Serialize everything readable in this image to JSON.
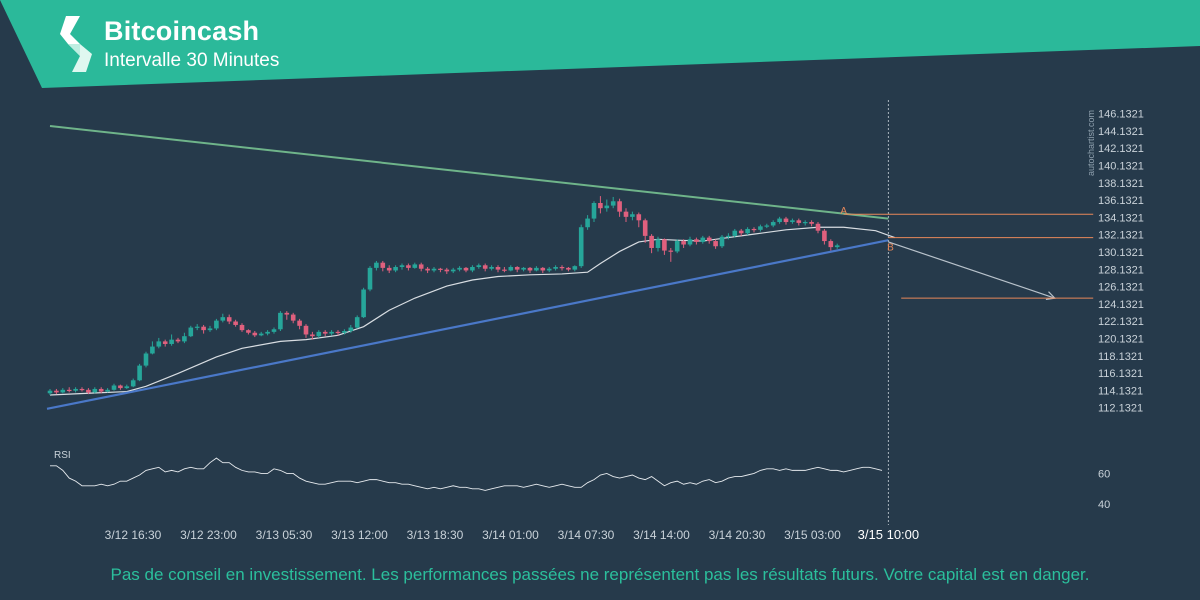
{
  "header": {
    "title": "Bitcoincash",
    "subtitle": "Intervalle 30 Minutes"
  },
  "watermark": "autochartist.com",
  "disclaimer": "Pas de conseil en investissement. Les performances passées ne représentent pas les résultats futurs. Votre capital est en danger.",
  "colors": {
    "brand": "#2bb99a",
    "background": "#263a4b",
    "bullish": "#26a69a",
    "bearish": "#e0607e",
    "resistance_line": "#6fb48a",
    "support_line": "#4a78c8",
    "ma_line": "#d8dde2",
    "forecast_line": "#b8c2cb",
    "level_line": "#e8885a"
  },
  "chart_data": {
    "type": "candlestick",
    "ylim": [
      110.1321,
      147.1321
    ],
    "y_ticks": [
      "146.1321",
      "144.1321",
      "142.1321",
      "140.1321",
      "138.1321",
      "136.1321",
      "134.1321",
      "132.1321",
      "130.1321",
      "128.1321",
      "126.1321",
      "124.1321",
      "122.1321",
      "120.1321",
      "118.1321",
      "116.1321",
      "114.1321",
      "112.1321"
    ],
    "x_ticks": [
      "3/12 16:30",
      "3/12 23:00",
      "3/13 05:30",
      "3/13 12:00",
      "3/13 18:30",
      "3/14 01:00",
      "3/14 07:30",
      "3/14 14:00",
      "3/14 20:30",
      "3/15 03:00",
      "3/15 10:00"
    ],
    "x_range_bars": [
      0,
      134
    ],
    "event_bar": 131,
    "candles": [
      [
        113.8,
        114.1,
        113.6,
        114.3
      ],
      [
        114.1,
        113.9,
        113.7,
        114.3
      ],
      [
        113.9,
        114.2,
        113.8,
        114.4
      ],
      [
        114.2,
        114.1,
        113.9,
        114.5
      ],
      [
        114.1,
        114.3,
        113.9,
        114.5
      ],
      [
        114.3,
        114.2,
        114.0,
        114.5
      ],
      [
        114.2,
        113.9,
        113.7,
        114.4
      ],
      [
        113.9,
        114.3,
        113.8,
        114.5
      ],
      [
        114.3,
        114.0,
        113.8,
        114.5
      ],
      [
        114.0,
        114.2,
        113.9,
        114.4
      ],
      [
        114.2,
        114.7,
        114.1,
        114.9
      ],
      [
        114.7,
        114.4,
        114.2,
        114.8
      ],
      [
        114.4,
        114.6,
        114.3,
        114.8
      ],
      [
        114.6,
        115.3,
        114.5,
        115.5
      ],
      [
        115.3,
        117.0,
        115.2,
        117.2
      ],
      [
        117.0,
        118.4,
        116.8,
        118.6
      ],
      [
        118.4,
        119.2,
        118.3,
        119.8
      ],
      [
        119.2,
        119.8,
        119.0,
        120.2
      ],
      [
        119.8,
        119.5,
        119.2,
        120.0
      ],
      [
        119.5,
        120.0,
        119.3,
        120.6
      ],
      [
        120.0,
        119.8,
        119.6,
        120.2
      ],
      [
        119.8,
        120.4,
        119.6,
        120.8
      ],
      [
        120.4,
        121.4,
        120.3,
        121.6
      ],
      [
        121.4,
        121.5,
        121.1,
        121.8
      ],
      [
        121.5,
        121.1,
        120.7,
        121.7
      ],
      [
        121.1,
        121.3,
        120.9,
        121.6
      ],
      [
        121.3,
        122.2,
        121.1,
        122.4
      ],
      [
        122.2,
        122.6,
        122.0,
        123.0
      ],
      [
        122.6,
        122.1,
        121.8,
        122.9
      ],
      [
        122.1,
        121.7,
        121.5,
        122.3
      ],
      [
        121.7,
        121.1,
        120.9,
        121.9
      ],
      [
        121.1,
        120.8,
        120.6,
        121.2
      ],
      [
        120.8,
        120.5,
        120.3,
        121.0
      ],
      [
        120.5,
        120.7,
        120.4,
        120.9
      ],
      [
        120.7,
        120.9,
        120.5,
        121.1
      ],
      [
        120.9,
        121.2,
        120.7,
        121.4
      ],
      [
        121.2,
        123.1,
        121.0,
        123.3
      ],
      [
        123.1,
        122.9,
        122.3,
        123.3
      ],
      [
        122.9,
        122.2,
        121.9,
        123.1
      ],
      [
        122.2,
        121.6,
        121.2,
        122.4
      ],
      [
        121.6,
        120.6,
        120.2,
        121.8
      ],
      [
        120.6,
        120.4,
        120.0,
        120.9
      ],
      [
        120.4,
        120.9,
        120.2,
        121.1
      ],
      [
        120.9,
        120.7,
        120.4,
        121.1
      ],
      [
        120.7,
        120.9,
        120.5,
        121.1
      ],
      [
        120.9,
        120.8,
        120.5,
        121.1
      ],
      [
        120.8,
        121.0,
        120.6,
        121.2
      ],
      [
        121.0,
        121.4,
        120.8,
        121.7
      ],
      [
        121.4,
        122.6,
        121.3,
        122.8
      ],
      [
        122.6,
        125.8,
        122.5,
        126.0
      ],
      [
        125.8,
        128.3,
        125.6,
        128.5
      ],
      [
        128.3,
        128.9,
        128.0,
        129.1
      ],
      [
        128.9,
        128.3,
        127.9,
        129.1
      ],
      [
        128.3,
        128.0,
        127.7,
        128.6
      ],
      [
        128.0,
        128.4,
        127.8,
        128.6
      ],
      [
        128.4,
        128.6,
        128.1,
        128.8
      ],
      [
        128.6,
        128.3,
        128.0,
        128.8
      ],
      [
        128.3,
        128.7,
        128.2,
        128.9
      ],
      [
        128.7,
        128.2,
        127.9,
        128.9
      ],
      [
        128.2,
        128.0,
        127.7,
        128.4
      ],
      [
        128.0,
        128.2,
        127.8,
        128.4
      ],
      [
        128.2,
        128.1,
        127.8,
        128.3
      ],
      [
        128.1,
        127.9,
        127.6,
        128.3
      ],
      [
        127.9,
        128.1,
        127.7,
        128.3
      ],
      [
        128.1,
        128.3,
        127.9,
        128.5
      ],
      [
        128.3,
        128.0,
        127.8,
        128.4
      ],
      [
        128.0,
        128.4,
        127.8,
        128.6
      ],
      [
        128.4,
        128.6,
        128.2,
        128.8
      ],
      [
        128.6,
        128.2,
        127.9,
        128.8
      ],
      [
        128.2,
        128.4,
        128.0,
        128.6
      ],
      [
        128.4,
        128.1,
        127.8,
        128.6
      ],
      [
        128.1,
        128.0,
        127.8,
        128.4
      ],
      [
        128.0,
        128.4,
        127.9,
        128.6
      ],
      [
        128.4,
        128.1,
        127.8,
        128.5
      ],
      [
        128.1,
        128.3,
        127.9,
        128.4
      ],
      [
        128.3,
        128.0,
        127.7,
        128.4
      ],
      [
        128.0,
        128.3,
        127.9,
        128.5
      ],
      [
        128.3,
        128.0,
        127.7,
        128.4
      ],
      [
        128.0,
        128.2,
        127.8,
        128.4
      ],
      [
        128.2,
        128.4,
        128.0,
        128.6
      ],
      [
        128.4,
        128.3,
        128.0,
        128.6
      ],
      [
        128.3,
        128.1,
        127.9,
        128.4
      ],
      [
        128.1,
        128.5,
        127.9,
        128.6
      ],
      [
        128.5,
        133.0,
        128.3,
        133.3
      ],
      [
        133.0,
        134.0,
        132.7,
        134.4
      ],
      [
        134.0,
        135.8,
        133.6,
        136.0
      ],
      [
        135.8,
        135.2,
        134.6,
        136.6
      ],
      [
        135.2,
        135.5,
        134.8,
        136.2
      ],
      [
        135.5,
        136.0,
        135.2,
        136.5
      ],
      [
        136.0,
        134.8,
        134.2,
        136.3
      ],
      [
        134.8,
        134.2,
        133.6,
        135.2
      ],
      [
        134.2,
        134.5,
        133.8,
        134.8
      ],
      [
        134.5,
        133.8,
        133.0,
        134.7
      ],
      [
        133.8,
        132.0,
        131.2,
        134.0
      ],
      [
        132.0,
        130.6,
        130.0,
        132.2
      ],
      [
        130.6,
        131.6,
        130.2,
        131.9
      ],
      [
        131.6,
        130.3,
        129.8,
        131.7
      ],
      [
        130.3,
        130.2,
        129.0,
        130.6
      ],
      [
        130.2,
        131.4,
        130.0,
        131.6
      ],
      [
        131.4,
        131.0,
        130.6,
        131.6
      ],
      [
        131.0,
        131.6,
        130.8,
        131.9
      ],
      [
        131.6,
        131.3,
        131.0,
        131.8
      ],
      [
        131.3,
        131.8,
        131.1,
        132.0
      ],
      [
        131.8,
        131.4,
        131.1,
        132.0
      ],
      [
        131.4,
        130.8,
        130.5,
        131.6
      ],
      [
        130.8,
        131.9,
        130.6,
        132.1
      ],
      [
        131.9,
        132.0,
        131.6,
        132.3
      ],
      [
        132.0,
        132.6,
        131.8,
        132.8
      ],
      [
        132.6,
        132.3,
        132.0,
        132.8
      ],
      [
        132.3,
        132.8,
        132.1,
        133.0
      ],
      [
        132.8,
        132.7,
        132.4,
        133.0
      ],
      [
        132.7,
        133.1,
        132.5,
        133.3
      ],
      [
        133.1,
        133.2,
        132.9,
        133.4
      ],
      [
        133.2,
        133.6,
        133.0,
        133.8
      ],
      [
        133.6,
        134.0,
        133.4,
        134.2
      ],
      [
        134.0,
        133.6,
        133.3,
        134.2
      ],
      [
        133.6,
        133.8,
        133.4,
        134.0
      ],
      [
        133.8,
        133.5,
        133.2,
        134.0
      ],
      [
        133.5,
        133.6,
        133.2,
        133.8
      ],
      [
        133.6,
        133.4,
        133.1,
        133.8
      ],
      [
        133.4,
        132.6,
        132.3,
        133.6
      ],
      [
        132.6,
        131.4,
        131.0,
        132.8
      ],
      [
        131.4,
        130.7,
        130.3,
        131.6
      ],
      [
        130.7,
        130.9,
        130.5,
        131.1
      ]
    ],
    "moving_average": [
      [
        0,
        113.6
      ],
      [
        6,
        113.8
      ],
      [
        12,
        114.0
      ],
      [
        15,
        114.6
      ],
      [
        20,
        116.1
      ],
      [
        26,
        118.0
      ],
      [
        30,
        119.0
      ],
      [
        36,
        119.8
      ],
      [
        40,
        120.0
      ],
      [
        45,
        120.5
      ],
      [
        49,
        121.5
      ],
      [
        53,
        123.4
      ],
      [
        57,
        124.8
      ],
      [
        62,
        126.2
      ],
      [
        66,
        126.9
      ],
      [
        70,
        127.3
      ],
      [
        75,
        127.5
      ],
      [
        80,
        127.6
      ],
      [
        84,
        127.8
      ],
      [
        86,
        128.8
      ],
      [
        89,
        130.2
      ],
      [
        92,
        131.3
      ],
      [
        95,
        131.6
      ],
      [
        98,
        131.5
      ],
      [
        102,
        131.4
      ],
      [
        105,
        131.7
      ],
      [
        110,
        132.2
      ],
      [
        115,
        132.7
      ],
      [
        120,
        133.0
      ],
      [
        124,
        133.0
      ],
      [
        129,
        132.6
      ],
      [
        132,
        131.8
      ]
    ],
    "resistance_line": [
      [
        0,
        144.7
      ],
      [
        131,
        134.0
      ]
    ],
    "support_line": [
      [
        0,
        112.0
      ],
      [
        131,
        131.5
      ]
    ],
    "levels": [
      {
        "value": 134.5,
        "from": 124,
        "to": 163
      },
      {
        "value": 131.8,
        "from": 131,
        "to": 163
      },
      {
        "value": 124.8,
        "from": 133,
        "to": 163
      }
    ],
    "point_labels": [
      {
        "text": "A",
        "x": 123.5,
        "y": 135.0
      },
      {
        "text": "B",
        "x": 130.8,
        "y": 130.8
      }
    ],
    "forecast": [
      [
        131,
        131.3
      ],
      [
        157,
        124.8
      ]
    ],
    "rsi": {
      "label": "RSI",
      "ylim": [
        33,
        72
      ],
      "ticks": [
        60,
        40
      ],
      "values": [
        65,
        65,
        62,
        57,
        55,
        52,
        52,
        52,
        53,
        52,
        53,
        55,
        55,
        57,
        59,
        62,
        63,
        64,
        61,
        62,
        61,
        63,
        64,
        63,
        63,
        67,
        70,
        67,
        67,
        64,
        62,
        61,
        61,
        60,
        60,
        63,
        62,
        60,
        60,
        57,
        55,
        54,
        53,
        53,
        54,
        55,
        55,
        55,
        54,
        55,
        56,
        56,
        55,
        54,
        54,
        53,
        53,
        52,
        51,
        50,
        51,
        50,
        51,
        52,
        51,
        51,
        50,
        50,
        49,
        50,
        51,
        52,
        52,
        52,
        51,
        52,
        53,
        52,
        51,
        52,
        53,
        52,
        51,
        51,
        54,
        56,
        59,
        60,
        58,
        57,
        58,
        59,
        57,
        56,
        58,
        55,
        52,
        54,
        55,
        53,
        54,
        53,
        55,
        56,
        54,
        55,
        57,
        58,
        58,
        59,
        60,
        62,
        63,
        63,
        62,
        63,
        62,
        62,
        62,
        63,
        64,
        63,
        62,
        62,
        61,
        62,
        63,
        64,
        64,
        63,
        62
      ]
    }
  }
}
